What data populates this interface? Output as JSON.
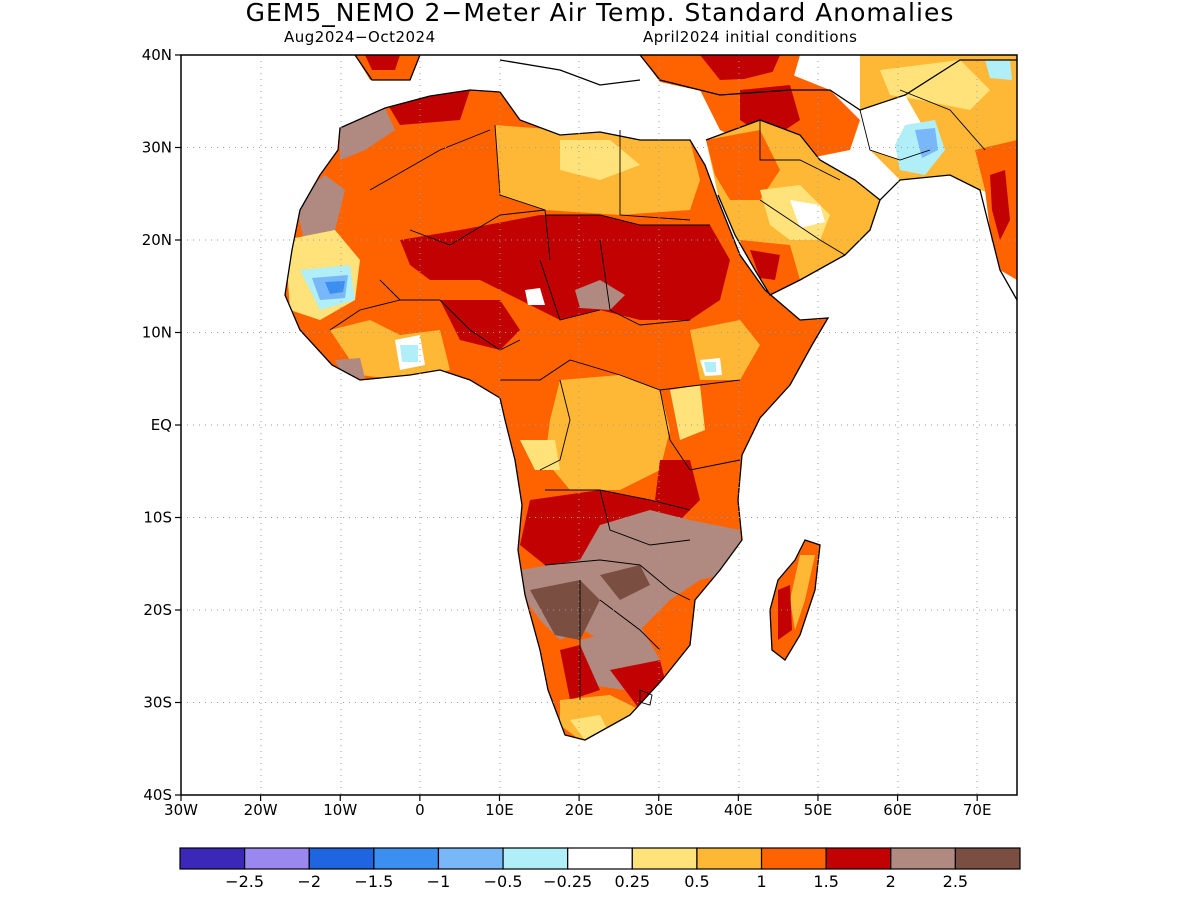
{
  "title": "GEM5_NEMO 2−Meter Air Temp. Standard Anomalies",
  "subtitle_left": "Aug2024−Oct2024",
  "subtitle_right": "April2024 initial conditions",
  "lat_ticks": [
    "40N",
    "30N",
    "20N",
    "10N",
    "EQ",
    "10S",
    "20S",
    "30S",
    "40S"
  ],
  "lat_values": [
    40,
    30,
    20,
    10,
    0,
    -10,
    -20,
    -30,
    -40
  ],
  "lon_ticks": [
    "30W",
    "20W",
    "10W",
    "0",
    "10E",
    "20E",
    "30E",
    "40E",
    "50E",
    "60E",
    "70E"
  ],
  "lon_values": [
    -30,
    -20,
    -10,
    0,
    10,
    20,
    30,
    40,
    50,
    60,
    70
  ],
  "extent": {
    "lon": [
      -30,
      75
    ],
    "lat": [
      -40,
      40
    ]
  },
  "colorbar": {
    "colors": [
      "#3b27b8",
      "#9a87f0",
      "#1f64e0",
      "#3b8ff0",
      "#78b7f8",
      "#b0eef8",
      "#ffffff",
      "#ffe27a",
      "#ffb836",
      "#ff6300",
      "#c20202",
      "#b08a80",
      "#7a4e40"
    ],
    "labels": [
      "−2.5",
      "−2",
      "−1.5",
      "−1",
      "−0.5",
      "−0.25",
      "0.25",
      "0.5",
      "1",
      "1.5",
      "2",
      "2.5"
    ]
  }
}
